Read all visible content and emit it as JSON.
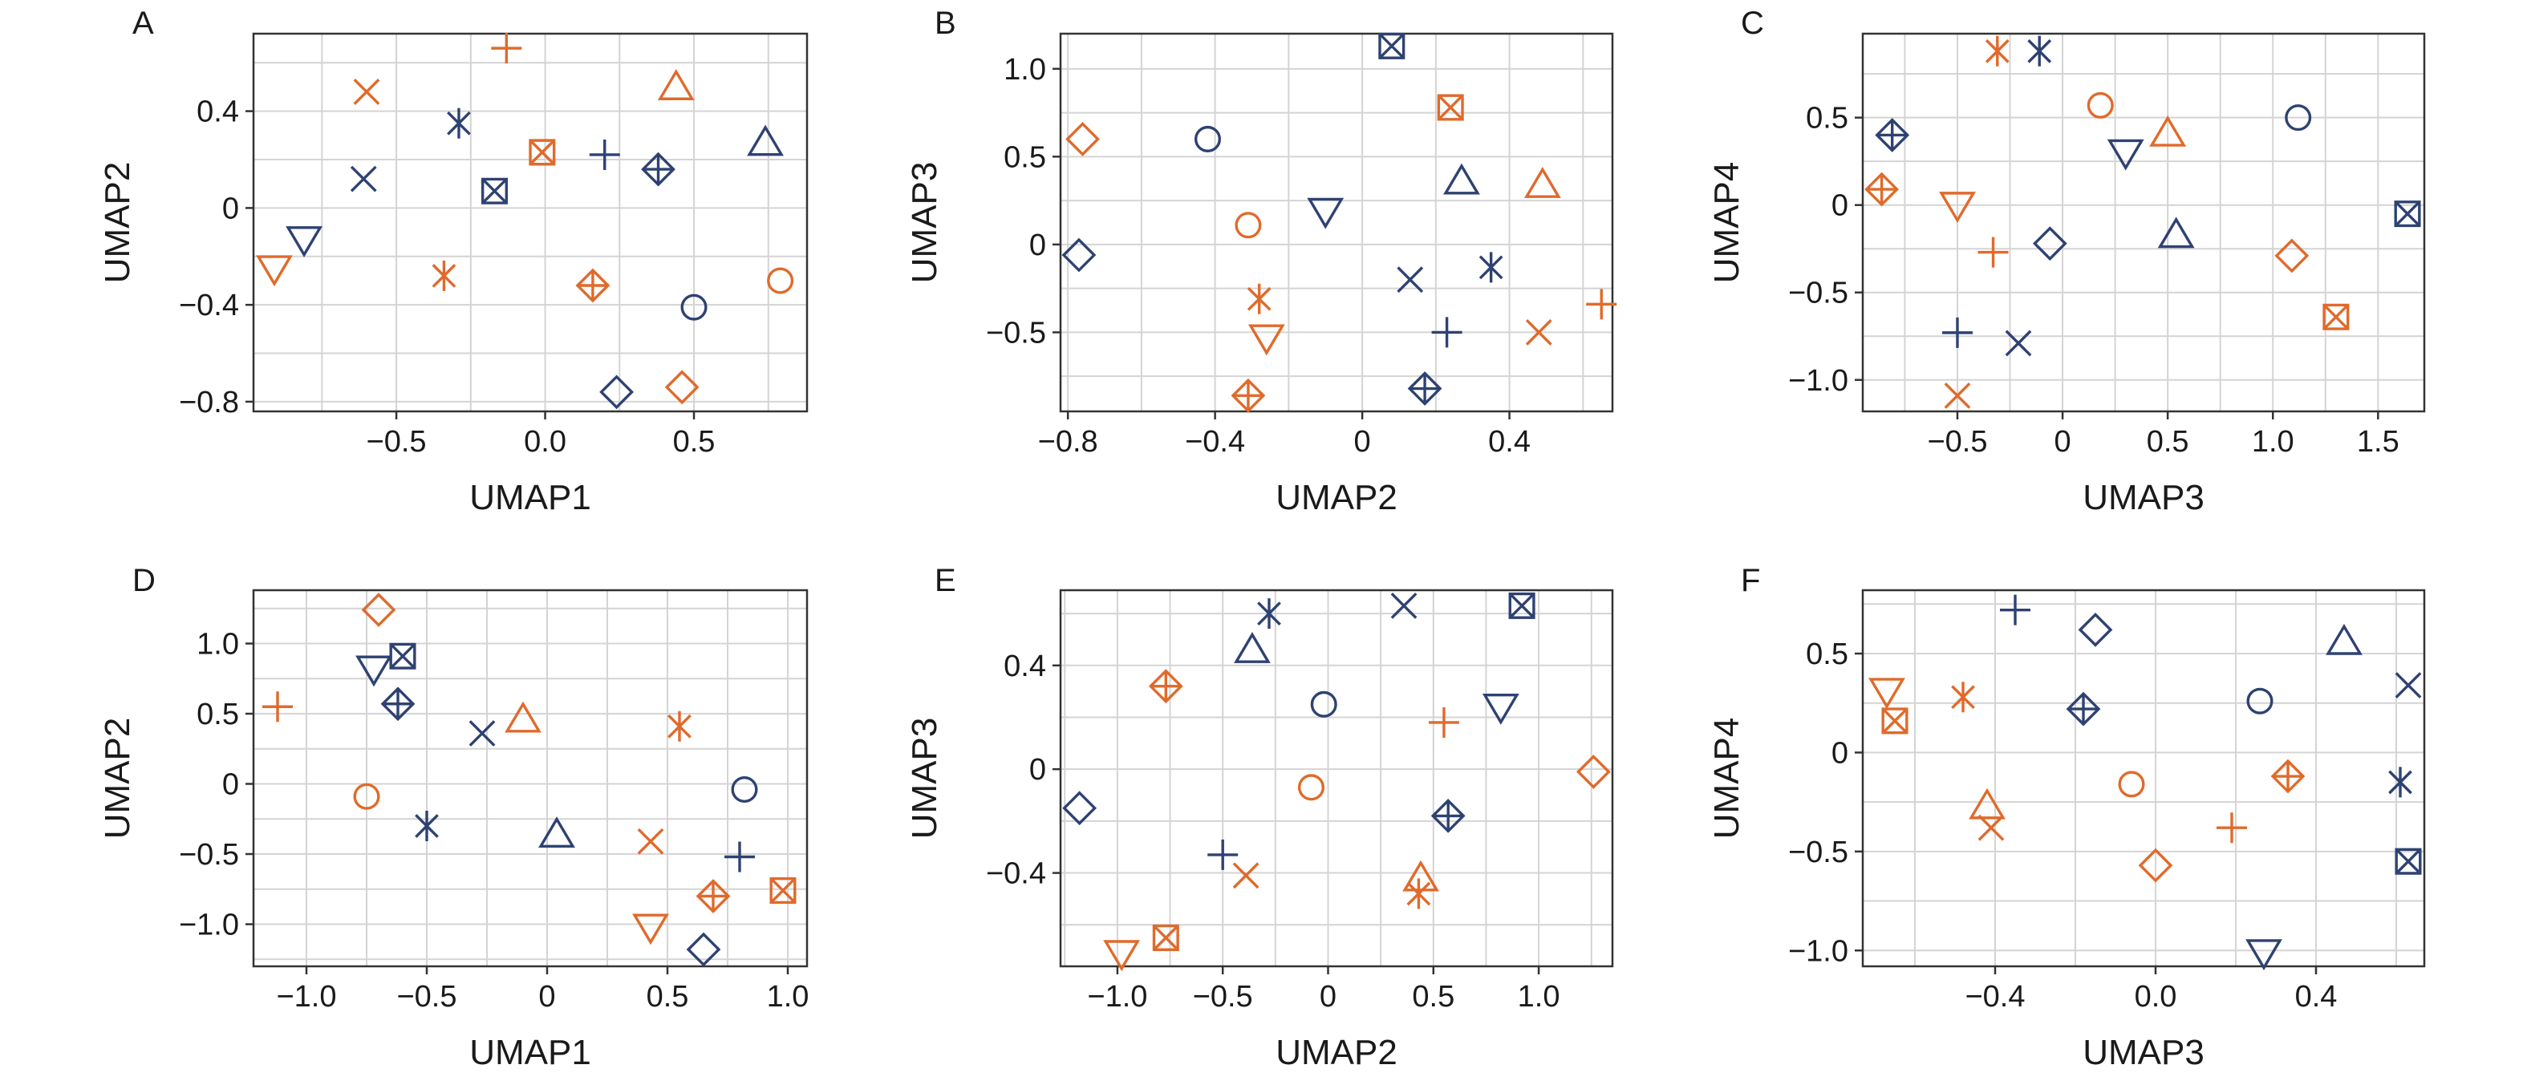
{
  "colors": {
    "blue": "#2e4272",
    "orange": "#e06a2b",
    "grid": "#d4d4d4",
    "axis": "#333333"
  },
  "chart_data": [
    {
      "panel": "A",
      "type": "scatter",
      "xlabel": "UMAP1",
      "ylabel": "UMAP2",
      "xlim": [
        -0.98,
        0.88
      ],
      "ylim": [
        -0.84,
        0.72
      ],
      "grid": true,
      "xticks": [
        -0.5,
        0.0,
        0.5
      ],
      "xtick_labels": [
        "−0.5",
        "0.0",
        "0.5"
      ],
      "yticks": [
        -0.8,
        -0.4,
        0.0,
        0.4
      ],
      "ytick_labels": [
        "−0.8",
        "−0.4",
        "0",
        "0.4"
      ],
      "points": [
        {
          "x": -0.13,
          "y": 0.66,
          "marker": "plus",
          "color": "orange"
        },
        {
          "x": -0.6,
          "y": 0.48,
          "marker": "x",
          "color": "orange"
        },
        {
          "x": 0.44,
          "y": 0.5,
          "marker": "triangle",
          "color": "orange"
        },
        {
          "x": -0.29,
          "y": 0.35,
          "marker": "asterisk",
          "color": "blue"
        },
        {
          "x": -0.61,
          "y": 0.12,
          "marker": "x",
          "color": "blue"
        },
        {
          "x": -0.01,
          "y": 0.23,
          "marker": "square-x",
          "color": "orange"
        },
        {
          "x": 0.2,
          "y": 0.22,
          "marker": "plus",
          "color": "blue"
        },
        {
          "x": 0.38,
          "y": 0.16,
          "marker": "diamond-plus",
          "color": "blue"
        },
        {
          "x": 0.74,
          "y": 0.27,
          "marker": "triangle",
          "color": "blue"
        },
        {
          "x": -0.17,
          "y": 0.07,
          "marker": "square-x",
          "color": "blue"
        },
        {
          "x": -0.81,
          "y": -0.13,
          "marker": "triangle-down",
          "color": "blue"
        },
        {
          "x": -0.91,
          "y": -0.25,
          "marker": "triangle-down",
          "color": "orange"
        },
        {
          "x": -0.34,
          "y": -0.28,
          "marker": "asterisk",
          "color": "orange"
        },
        {
          "x": 0.16,
          "y": -0.32,
          "marker": "diamond-plus",
          "color": "orange"
        },
        {
          "x": 0.5,
          "y": -0.41,
          "marker": "circle",
          "color": "blue"
        },
        {
          "x": 0.79,
          "y": -0.3,
          "marker": "circle",
          "color": "orange"
        },
        {
          "x": 0.24,
          "y": -0.76,
          "marker": "diamond",
          "color": "blue"
        },
        {
          "x": 0.46,
          "y": -0.74,
          "marker": "diamond",
          "color": "orange"
        }
      ]
    },
    {
      "panel": "B",
      "type": "scatter",
      "xlabel": "UMAP2",
      "ylabel": "UMAP3",
      "xlim": [
        -0.82,
        0.68
      ],
      "ylim": [
        -0.95,
        1.2
      ],
      "grid": true,
      "xticks": [
        -0.8,
        -0.4,
        0.0,
        0.4
      ],
      "xtick_labels": [
        "−0.8",
        "−0.4",
        "0",
        "0.4"
      ],
      "yticks": [
        -0.5,
        0.0,
        0.5,
        1.0
      ],
      "ytick_labels": [
        "−0.5",
        "0",
        "0.5",
        "1.0"
      ],
      "points": [
        {
          "x": 0.08,
          "y": 1.13,
          "marker": "square-x",
          "color": "blue"
        },
        {
          "x": 0.24,
          "y": 0.78,
          "marker": "square-x",
          "color": "orange"
        },
        {
          "x": -0.76,
          "y": 0.6,
          "marker": "diamond",
          "color": "orange"
        },
        {
          "x": -0.42,
          "y": 0.6,
          "marker": "circle",
          "color": "blue"
        },
        {
          "x": 0.27,
          "y": 0.36,
          "marker": "triangle",
          "color": "blue"
        },
        {
          "x": 0.49,
          "y": 0.34,
          "marker": "triangle",
          "color": "orange"
        },
        {
          "x": -0.1,
          "y": 0.19,
          "marker": "triangle-down",
          "color": "blue"
        },
        {
          "x": -0.31,
          "y": 0.11,
          "marker": "circle",
          "color": "orange"
        },
        {
          "x": -0.77,
          "y": -0.06,
          "marker": "diamond",
          "color": "blue"
        },
        {
          "x": 0.35,
          "y": -0.13,
          "marker": "asterisk",
          "color": "blue"
        },
        {
          "x": 0.13,
          "y": -0.2,
          "marker": "x",
          "color": "blue"
        },
        {
          "x": -0.28,
          "y": -0.31,
          "marker": "asterisk",
          "color": "orange"
        },
        {
          "x": 0.65,
          "y": -0.34,
          "marker": "plus",
          "color": "orange"
        },
        {
          "x": -0.26,
          "y": -0.53,
          "marker": "triangle-down",
          "color": "orange"
        },
        {
          "x": 0.23,
          "y": -0.5,
          "marker": "plus",
          "color": "blue"
        },
        {
          "x": 0.48,
          "y": -0.5,
          "marker": "x",
          "color": "orange"
        },
        {
          "x": 0.17,
          "y": -0.82,
          "marker": "diamond-plus",
          "color": "blue"
        },
        {
          "x": -0.31,
          "y": -0.86,
          "marker": "diamond-plus",
          "color": "orange"
        }
      ]
    },
    {
      "panel": "C",
      "type": "scatter",
      "xlabel": "UMAP3",
      "ylabel": "UMAP4",
      "xlim": [
        -0.95,
        1.72
      ],
      "ylim": [
        -1.18,
        0.98
      ],
      "grid": true,
      "xticks": [
        -0.5,
        0.0,
        0.5,
        1.0,
        1.5
      ],
      "xtick_labels": [
        "−0.5",
        "0",
        "0.5",
        "1.0",
        "1.5"
      ],
      "yticks": [
        -1.0,
        -0.5,
        0.0,
        0.5
      ],
      "ytick_labels": [
        "−1.0",
        "−0.5",
        "0",
        "0.5"
      ],
      "points": [
        {
          "x": -0.31,
          "y": 0.88,
          "marker": "asterisk",
          "color": "orange"
        },
        {
          "x": -0.11,
          "y": 0.88,
          "marker": "asterisk",
          "color": "blue"
        },
        {
          "x": 0.18,
          "y": 0.57,
          "marker": "circle",
          "color": "orange"
        },
        {
          "x": 1.12,
          "y": 0.5,
          "marker": "circle",
          "color": "blue"
        },
        {
          "x": -0.81,
          "y": 0.4,
          "marker": "diamond-plus",
          "color": "blue"
        },
        {
          "x": 0.5,
          "y": 0.41,
          "marker": "triangle",
          "color": "orange"
        },
        {
          "x": 0.3,
          "y": 0.3,
          "marker": "triangle-down",
          "color": "blue"
        },
        {
          "x": -0.86,
          "y": 0.09,
          "marker": "diamond-plus",
          "color": "orange"
        },
        {
          "x": -0.5,
          "y": 0.0,
          "marker": "triangle-down",
          "color": "orange"
        },
        {
          "x": 1.64,
          "y": -0.05,
          "marker": "square-x",
          "color": "blue"
        },
        {
          "x": 0.54,
          "y": -0.17,
          "marker": "triangle",
          "color": "blue"
        },
        {
          "x": -0.06,
          "y": -0.22,
          "marker": "diamond",
          "color": "blue"
        },
        {
          "x": -0.33,
          "y": -0.27,
          "marker": "plus",
          "color": "orange"
        },
        {
          "x": 1.09,
          "y": -0.29,
          "marker": "diamond",
          "color": "orange"
        },
        {
          "x": 1.3,
          "y": -0.64,
          "marker": "square-x",
          "color": "orange"
        },
        {
          "x": -0.5,
          "y": -0.73,
          "marker": "plus",
          "color": "blue"
        },
        {
          "x": -0.21,
          "y": -0.79,
          "marker": "x",
          "color": "blue"
        },
        {
          "x": -0.5,
          "y": -1.09,
          "marker": "x",
          "color": "orange"
        }
      ]
    },
    {
      "panel": "D",
      "type": "scatter",
      "xlabel": "UMAP1",
      "ylabel": "UMAP2",
      "xlim": [
        -1.22,
        1.08
      ],
      "ylim": [
        -1.3,
        1.38
      ],
      "grid": true,
      "xticks": [
        -1.0,
        -0.5,
        0.0,
        0.5,
        1.0
      ],
      "xtick_labels": [
        "−1.0",
        "−0.5",
        "0",
        "0.5",
        "1.0"
      ],
      "yticks": [
        -1.0,
        -0.5,
        0.0,
        0.5,
        1.0
      ],
      "ytick_labels": [
        "−1.0",
        "−0.5",
        "0",
        "0.5",
        "1.0"
      ],
      "points": [
        {
          "x": -0.7,
          "y": 1.24,
          "marker": "diamond",
          "color": "orange"
        },
        {
          "x": -0.6,
          "y": 0.91,
          "marker": "square-x",
          "color": "blue"
        },
        {
          "x": -0.72,
          "y": 0.82,
          "marker": "triangle-down",
          "color": "blue"
        },
        {
          "x": -1.12,
          "y": 0.55,
          "marker": "plus",
          "color": "orange"
        },
        {
          "x": -0.62,
          "y": 0.57,
          "marker": "diamond-plus",
          "color": "blue"
        },
        {
          "x": -0.1,
          "y": 0.46,
          "marker": "triangle",
          "color": "orange"
        },
        {
          "x": -0.27,
          "y": 0.36,
          "marker": "x",
          "color": "blue"
        },
        {
          "x": 0.55,
          "y": 0.41,
          "marker": "asterisk",
          "color": "orange"
        },
        {
          "x": -0.75,
          "y": -0.09,
          "marker": "circle",
          "color": "orange"
        },
        {
          "x": 0.82,
          "y": -0.04,
          "marker": "circle",
          "color": "blue"
        },
        {
          "x": -0.5,
          "y": -0.3,
          "marker": "asterisk",
          "color": "blue"
        },
        {
          "x": 0.04,
          "y": -0.36,
          "marker": "triangle",
          "color": "blue"
        },
        {
          "x": 0.43,
          "y": -0.41,
          "marker": "x",
          "color": "orange"
        },
        {
          "x": 0.8,
          "y": -0.52,
          "marker": "plus",
          "color": "blue"
        },
        {
          "x": 0.69,
          "y": -0.8,
          "marker": "diamond-plus",
          "color": "orange"
        },
        {
          "x": 0.98,
          "y": -0.76,
          "marker": "square-x",
          "color": "orange"
        },
        {
          "x": 0.43,
          "y": -1.02,
          "marker": "triangle-down",
          "color": "orange"
        },
        {
          "x": 0.65,
          "y": -1.18,
          "marker": "diamond",
          "color": "blue"
        }
      ]
    },
    {
      "panel": "E",
      "type": "scatter",
      "xlabel": "UMAP2",
      "ylabel": "UMAP3",
      "xlim": [
        -1.27,
        1.35
      ],
      "ylim": [
        -0.76,
        0.69
      ],
      "grid": true,
      "xticks": [
        -1.0,
        -0.5,
        0.0,
        0.5,
        1.0
      ],
      "xtick_labels": [
        "−1.0",
        "−0.5",
        "0",
        "0.5",
        "1.0"
      ],
      "yticks": [
        -0.4,
        0.0,
        0.4
      ],
      "ytick_labels": [
        "−0.4",
        "0",
        "0.4"
      ],
      "points": [
        {
          "x": 0.36,
          "y": 0.63,
          "marker": "x",
          "color": "blue"
        },
        {
          "x": 0.92,
          "y": 0.63,
          "marker": "square-x",
          "color": "blue"
        },
        {
          "x": -0.28,
          "y": 0.6,
          "marker": "asterisk",
          "color": "blue"
        },
        {
          "x": -0.36,
          "y": 0.46,
          "marker": "triangle",
          "color": "blue"
        },
        {
          "x": -0.77,
          "y": 0.32,
          "marker": "diamond-plus",
          "color": "orange"
        },
        {
          "x": -0.02,
          "y": 0.25,
          "marker": "circle",
          "color": "blue"
        },
        {
          "x": 0.82,
          "y": 0.24,
          "marker": "triangle-down",
          "color": "blue"
        },
        {
          "x": 0.55,
          "y": 0.18,
          "marker": "plus",
          "color": "orange"
        },
        {
          "x": -0.08,
          "y": -0.07,
          "marker": "circle",
          "color": "orange"
        },
        {
          "x": 1.26,
          "y": -0.01,
          "marker": "diamond",
          "color": "orange"
        },
        {
          "x": -1.18,
          "y": -0.15,
          "marker": "diamond",
          "color": "blue"
        },
        {
          "x": 0.57,
          "y": -0.18,
          "marker": "diamond-plus",
          "color": "blue"
        },
        {
          "x": -0.5,
          "y": -0.33,
          "marker": "plus",
          "color": "blue"
        },
        {
          "x": -0.39,
          "y": -0.41,
          "marker": "x",
          "color": "orange"
        },
        {
          "x": 0.44,
          "y": -0.42,
          "marker": "triangle",
          "color": "orange"
        },
        {
          "x": 0.43,
          "y": -0.48,
          "marker": "asterisk",
          "color": "orange"
        },
        {
          "x": -0.77,
          "y": -0.65,
          "marker": "square-x",
          "color": "orange"
        },
        {
          "x": -0.98,
          "y": -0.71,
          "marker": "triangle-down",
          "color": "orange"
        }
      ]
    },
    {
      "panel": "F",
      "type": "scatter",
      "xlabel": "UMAP3",
      "ylabel": "UMAP4",
      "xlim": [
        -0.73,
        0.67
      ],
      "ylim": [
        -1.08,
        0.82
      ],
      "grid": true,
      "xticks": [
        -0.4,
        0.0,
        0.4
      ],
      "xtick_labels": [
        "−0.4",
        "0.0",
        "0.4"
      ],
      "yticks": [
        -1.0,
        -0.5,
        0.0,
        0.5
      ],
      "ytick_labels": [
        "−1.0",
        "−0.5",
        "0",
        "0.5"
      ],
      "points": [
        {
          "x": -0.35,
          "y": 0.72,
          "marker": "plus",
          "color": "blue"
        },
        {
          "x": -0.15,
          "y": 0.62,
          "marker": "diamond",
          "color": "blue"
        },
        {
          "x": 0.47,
          "y": 0.56,
          "marker": "triangle",
          "color": "blue"
        },
        {
          "x": 0.63,
          "y": 0.34,
          "marker": "x",
          "color": "blue"
        },
        {
          "x": -0.67,
          "y": 0.31,
          "marker": "triangle-down",
          "color": "orange"
        },
        {
          "x": -0.48,
          "y": 0.28,
          "marker": "asterisk",
          "color": "orange"
        },
        {
          "x": 0.26,
          "y": 0.26,
          "marker": "circle",
          "color": "blue"
        },
        {
          "x": -0.18,
          "y": 0.22,
          "marker": "diamond-plus",
          "color": "blue"
        },
        {
          "x": -0.65,
          "y": 0.16,
          "marker": "square-x",
          "color": "orange"
        },
        {
          "x": -0.06,
          "y": -0.16,
          "marker": "circle",
          "color": "orange"
        },
        {
          "x": 0.33,
          "y": -0.12,
          "marker": "diamond-plus",
          "color": "orange"
        },
        {
          "x": 0.61,
          "y": -0.15,
          "marker": "asterisk",
          "color": "blue"
        },
        {
          "x": -0.42,
          "y": -0.27,
          "marker": "triangle",
          "color": "orange"
        },
        {
          "x": -0.41,
          "y": -0.38,
          "marker": "x",
          "color": "orange"
        },
        {
          "x": 0.19,
          "y": -0.38,
          "marker": "plus",
          "color": "orange"
        },
        {
          "x": 0.63,
          "y": -0.55,
          "marker": "square-x",
          "color": "blue"
        },
        {
          "x": 0.0,
          "y": -0.57,
          "marker": "diamond",
          "color": "orange"
        },
        {
          "x": 0.27,
          "y": -1.01,
          "marker": "triangle-down",
          "color": "blue"
        }
      ]
    }
  ]
}
